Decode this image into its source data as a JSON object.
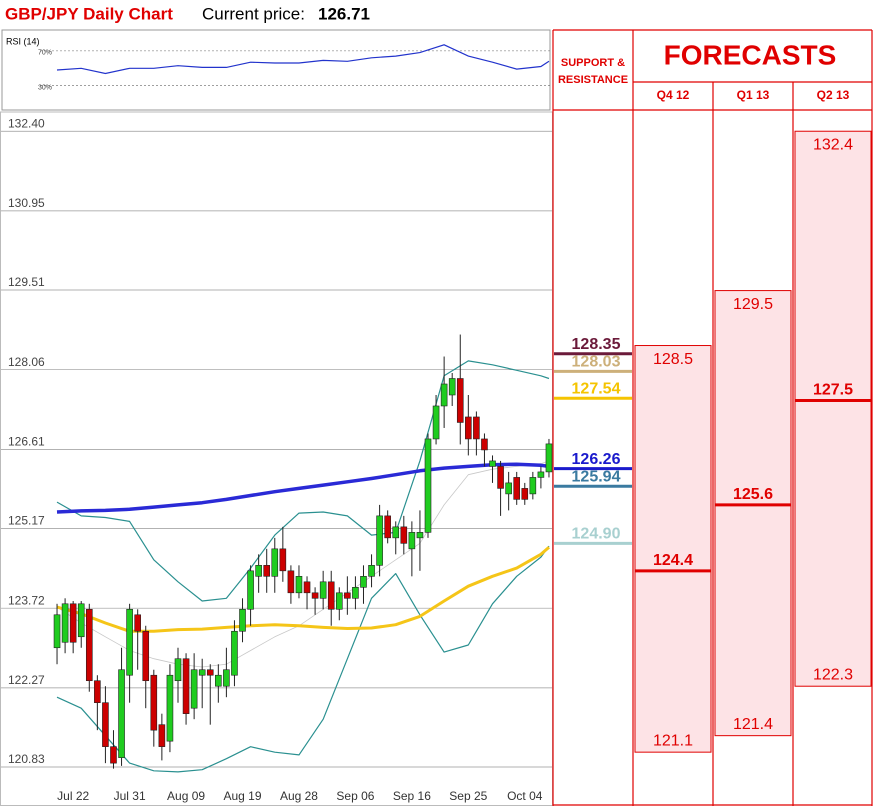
{
  "chart_data": [
    {
      "type": "candlestick",
      "title": "GBP/JPY Daily Chart",
      "current_price_label": "Current price:",
      "current_price": 126.71,
      "categories": [
        null,
        null,
        "Jul 22",
        null,
        null,
        null,
        null,
        null,
        null,
        "Jul 31",
        null,
        null,
        null,
        null,
        null,
        null,
        "Aug 09",
        null,
        null,
        null,
        null,
        null,
        null,
        "Aug 19",
        null,
        null,
        null,
        null,
        null,
        null,
        "Aug 28",
        null,
        null,
        null,
        null,
        null,
        null,
        "Sep 06",
        null,
        null,
        null,
        null,
        null,
        null,
        "Sep 16",
        null,
        null,
        null,
        null,
        null,
        null,
        "Sep 25",
        null,
        null,
        null,
        null,
        null,
        null,
        "Oct 04",
        null,
        null,
        null
      ],
      "open": [
        123.0,
        123.1,
        123.8,
        123.2,
        123.7,
        122.4,
        122.0,
        121.2,
        121.0,
        122.5,
        123.6,
        123.3,
        122.5,
        121.6,
        121.3,
        122.4,
        122.8,
        121.9,
        122.5,
        122.6,
        122.3,
        122.3,
        122.5,
        123.3,
        123.7,
        124.3,
        124.5,
        124.3,
        124.8,
        124.4,
        124.0,
        124.2,
        124.0,
        123.9,
        124.2,
        123.7,
        124.0,
        123.9,
        124.1,
        124.3,
        124.5,
        125.4,
        125.0,
        125.2,
        124.8,
        125.0,
        125.1,
        126.8,
        127.4,
        127.6,
        127.9,
        127.2,
        127.2,
        126.8,
        126.3,
        126.3,
        125.8,
        126.1,
        125.9,
        125.8,
        126.1,
        126.2
      ],
      "high": [
        123.8,
        123.9,
        123.85,
        123.85,
        123.8,
        122.5,
        122.3,
        121.5,
        123.0,
        123.8,
        123.7,
        123.4,
        122.6,
        121.8,
        122.7,
        123.0,
        122.9,
        122.9,
        122.8,
        122.7,
        122.7,
        123.0,
        123.5,
        123.9,
        124.5,
        124.7,
        124.8,
        125.0,
        125.2,
        124.5,
        124.5,
        124.3,
        124.1,
        124.4,
        124.4,
        124.1,
        124.3,
        124.3,
        124.5,
        124.7,
        125.6,
        125.5,
        125.3,
        125.4,
        125.3,
        125.5,
        126.9,
        127.6,
        128.3,
        128.0,
        128.7,
        127.6,
        127.3,
        126.9,
        126.5,
        126.4,
        126.2,
        126.2,
        126.0,
        126.2,
        126.3,
        126.8
      ],
      "low": [
        122.7,
        122.9,
        122.9,
        123.0,
        122.2,
        121.5,
        120.9,
        120.8,
        120.85,
        122.0,
        122.6,
        121.9,
        121.2,
        120.95,
        121.1,
        122.0,
        121.6,
        121.7,
        121.9,
        121.6,
        122.0,
        122.1,
        122.3,
        123.1,
        123.4,
        124.0,
        124.0,
        124.0,
        124.2,
        123.8,
        123.9,
        123.7,
        123.6,
        123.7,
        123.4,
        123.5,
        123.6,
        123.7,
        123.8,
        124.1,
        124.3,
        124.9,
        124.7,
        124.7,
        124.3,
        124.4,
        125.0,
        126.7,
        127.0,
        127.4,
        126.7,
        126.5,
        126.5,
        126.3,
        126.0,
        125.4,
        125.5,
        125.6,
        125.6,
        125.7,
        125.9,
        126.1
      ],
      "close": [
        123.6,
        123.8,
        123.1,
        123.8,
        122.4,
        122.0,
        121.2,
        120.9,
        122.6,
        123.7,
        123.3,
        122.4,
        121.5,
        121.2,
        122.5,
        122.8,
        121.8,
        122.6,
        122.6,
        122.5,
        122.5,
        122.6,
        123.3,
        123.7,
        124.4,
        124.5,
        124.3,
        124.8,
        124.4,
        124.0,
        124.3,
        124.0,
        123.9,
        124.2,
        123.7,
        124.0,
        123.9,
        124.1,
        124.3,
        124.5,
        125.4,
        125.0,
        125.2,
        124.9,
        125.1,
        125.1,
        126.8,
        127.4,
        127.8,
        127.9,
        127.1,
        126.8,
        126.8,
        126.6,
        126.4,
        125.9,
        126.0,
        125.7,
        125.7,
        126.1,
        126.2,
        126.71
      ],
      "up_color": "#1fcc1f",
      "down_color": "#cc0000",
      "lines": [
        {
          "color": "#2a2ad6",
          "width": 3.5,
          "x": [
            0,
            3,
            6,
            9,
            12,
            15,
            18,
            21,
            24,
            27,
            30,
            33,
            36,
            39,
            42,
            45,
            48,
            51,
            54,
            57,
            60,
            61
          ],
          "values": [
            125.47,
            125.49,
            125.5,
            125.52,
            125.56,
            125.6,
            125.64,
            125.7,
            125.77,
            125.84,
            125.9,
            125.96,
            126.02,
            126.08,
            126.15,
            126.22,
            126.27,
            126.3,
            126.33,
            126.34,
            126.32,
            126.3
          ]
        },
        {
          "color": "#f5c518",
          "width": 3,
          "x": [
            0,
            3,
            6,
            9,
            12,
            15,
            18,
            21,
            24,
            27,
            30,
            33,
            36,
            39,
            42,
            45,
            48,
            51,
            54,
            57,
            60,
            61
          ],
          "values": [
            123.74,
            123.62,
            123.45,
            123.3,
            123.3,
            123.33,
            123.34,
            123.37,
            123.4,
            123.42,
            123.4,
            123.37,
            123.35,
            123.36,
            123.42,
            123.57,
            123.85,
            124.12,
            124.3,
            124.45,
            124.7,
            124.83
          ]
        },
        {
          "color": "#2a9090",
          "width": 1.2,
          "x": [
            0,
            3,
            6,
            9,
            12,
            15,
            18,
            21,
            24,
            27,
            30,
            33,
            36,
            39,
            42,
            45,
            48,
            51,
            54,
            57,
            60,
            61
          ],
          "values": [
            125.65,
            125.4,
            125.37,
            125.3,
            124.6,
            124.2,
            123.85,
            123.9,
            124.45,
            125.05,
            125.45,
            125.47,
            125.4,
            125.05,
            125.1,
            126.4,
            127.95,
            128.22,
            128.15,
            128.05,
            127.95,
            127.9
          ]
        },
        {
          "color": "#2a9090",
          "width": 1.2,
          "x": [
            0,
            3,
            6,
            9,
            12,
            15,
            18,
            21,
            24,
            27,
            30,
            33,
            36,
            39,
            42,
            45,
            48,
            51,
            54,
            57,
            60,
            61
          ],
          "values": [
            122.1,
            121.9,
            121.4,
            120.9,
            120.76,
            120.74,
            120.78,
            120.98,
            121.2,
            121.1,
            121.05,
            121.7,
            122.8,
            123.9,
            124.35,
            123.6,
            122.92,
            123.05,
            123.8,
            124.3,
            124.65,
            124.85
          ]
        },
        {
          "color": "#c8c8c8",
          "width": 0.8,
          "x": [
            0,
            3,
            6,
            9,
            12,
            15,
            18,
            21,
            24,
            27,
            30,
            33,
            36,
            39,
            42,
            45,
            48,
            51,
            54,
            57,
            60,
            61
          ],
          "values": [
            123.74,
            123.45,
            123.2,
            122.95,
            122.8,
            122.7,
            122.65,
            122.7,
            122.95,
            123.2,
            123.4,
            123.7,
            124.0,
            124.3,
            124.6,
            124.9,
            125.6,
            126.15,
            126.25,
            126.3,
            126.35,
            126.4
          ]
        }
      ],
      "ylim": [
        120.12,
        132.75
      ],
      "yticks": [
        {
          "value": 132.4,
          "label": "132.40"
        },
        130.95,
        129.51,
        128.06,
        126.61,
        125.17,
        123.72,
        122.27,
        120.83
      ],
      "grid": true,
      "support_resistance_title": [
        "SUPPORT &",
        "RESISTANCE"
      ],
      "levels": [
        {
          "value": 128.35,
          "color": "#6b1a3a"
        },
        {
          "value": 128.03,
          "color": "#cdb07a"
        },
        {
          "value": 127.54,
          "color": "#f5c400"
        },
        {
          "value": 126.26,
          "color": "#1a1acc"
        },
        {
          "value": 125.94,
          "color": "#3a7aa0"
        },
        {
          "value": 124.9,
          "label": "124.90",
          "color": "#a8d0d0"
        }
      ],
      "forecasts_title": "FORECASTS",
      "forecasts": [
        {
          "period": "Q4 12",
          "high": 128.5,
          "mid": 124.4,
          "low": 121.1
        },
        {
          "period": "Q1 13",
          "high": 129.5,
          "mid": 125.6,
          "low": 121.4
        },
        {
          "period": "Q2 13",
          "high": 132.4,
          "mid": 127.5,
          "low": 122.3
        }
      ],
      "forecast_color": "#e00000",
      "forecast_fill": "#fde3e6"
    },
    {
      "type": "line",
      "title": "RSI (14)",
      "x": [
        0,
        3,
        6,
        9,
        12,
        15,
        18,
        21,
        24,
        27,
        30,
        33,
        36,
        39,
        42,
        45,
        48,
        51,
        54,
        57,
        60,
        61
      ],
      "values": [
        48,
        50,
        44,
        50,
        50,
        53,
        51,
        51,
        57,
        56,
        56,
        59,
        58,
        62,
        64,
        68,
        77,
        64,
        57,
        49,
        52,
        58
      ],
      "color": "#2233cc",
      "ylim": [
        2,
        94
      ],
      "yticks": [
        {
          "value": 70,
          "label": "70%"
        },
        {
          "value": 30,
          "label": "30%"
        }
      ]
    }
  ]
}
